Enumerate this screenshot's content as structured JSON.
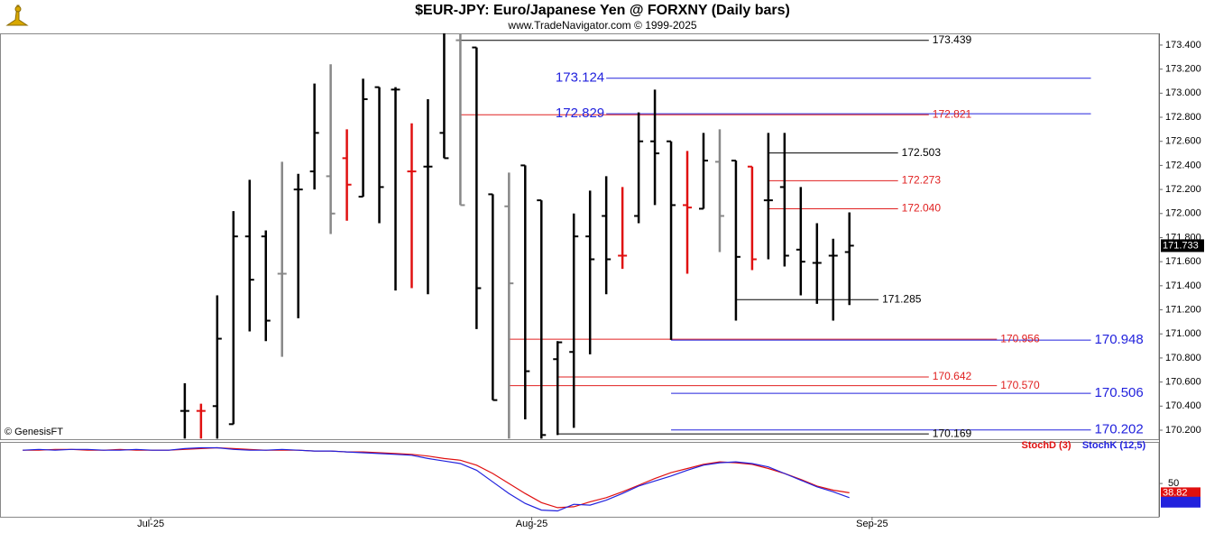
{
  "chart_data": {
    "type": "ohlc",
    "title": "$EUR-JPY:  Euro/Japanese Yen @ FORXNY  (Daily bars)",
    "subtitle": "www.TradeNavigator.com © 1999-2025",
    "credit": "© GenesisFT",
    "xlim": [
      -11.4,
      60.1
    ],
    "xticks": [
      {
        "value": -2.1,
        "label": "Jul-25"
      },
      {
        "value": 21.4,
        "label": "Aug-25"
      },
      {
        "value": 42.4,
        "label": "Sep-25"
      }
    ],
    "ylim": [
      170.125,
      173.497
    ],
    "yticks": [
      {
        "value": 170.2,
        "label": "170.200"
      },
      {
        "value": 170.4,
        "label": "170.400"
      },
      {
        "value": 170.6,
        "label": "170.600"
      },
      {
        "value": 170.8,
        "label": "170.800"
      },
      {
        "value": 171.0,
        "label": "171.000"
      },
      {
        "value": 171.2,
        "label": "171.200"
      },
      {
        "value": 171.4,
        "label": "171.400"
      },
      {
        "value": 171.6,
        "label": "171.600"
      },
      {
        "value": 171.8,
        "label": "171.800"
      },
      {
        "value": 172.0,
        "label": "172.000"
      },
      {
        "value": 172.2,
        "label": "172.200"
      },
      {
        "value": 172.4,
        "label": "172.400"
      },
      {
        "value": 172.6,
        "label": "172.600"
      },
      {
        "value": 172.8,
        "label": "172.800"
      },
      {
        "value": 173.0,
        "label": "173.000"
      },
      {
        "value": 173.2,
        "label": "173.200"
      },
      {
        "value": 173.4,
        "label": "173.400"
      }
    ],
    "open": [
      170.36,
      170.36,
      170.4,
      170.25,
      171.81,
      171.81,
      171.5,
      172.2,
      172.35,
      172.31,
      172.46,
      172.14,
      173.05,
      173.03,
      172.35,
      172.39,
      172.67,
      173.44,
      173.38,
      172.16,
      172.06,
      172.4,
      172.11,
      170.79,
      170.85,
      171.81,
      171.98,
      171.65,
      171.98,
      172.6,
      172.6,
      172.07,
      172.04,
      172.43,
      172.44,
      172.39,
      172.11,
      172.22,
      171.7,
      171.59,
      171.65,
      171.68
    ],
    "high": [
      170.59,
      170.42,
      171.32,
      172.02,
      172.28,
      171.86,
      172.43,
      172.33,
      173.08,
      173.24,
      172.7,
      173.12,
      173.05,
      173.05,
      172.75,
      172.95,
      173.5,
      173.5,
      173.38,
      172.16,
      172.34,
      172.4,
      172.11,
      170.94,
      172.0,
      172.19,
      172.31,
      172.22,
      172.84,
      173.03,
      172.6,
      172.52,
      172.67,
      172.7,
      172.44,
      172.39,
      172.67,
      172.67,
      172.22,
      171.92,
      171.79,
      172.01
    ],
    "low": [
      170.13,
      170.13,
      170.13,
      170.25,
      171.02,
      170.94,
      170.81,
      171.13,
      172.2,
      171.83,
      171.94,
      172.14,
      171.92,
      171.36,
      171.38,
      171.33,
      172.46,
      172.07,
      171.04,
      170.45,
      170.13,
      170.29,
      170.13,
      170.16,
      170.22,
      170.83,
      171.33,
      171.54,
      171.92,
      172.07,
      170.95,
      171.5,
      172.04,
      171.68,
      171.11,
      171.53,
      171.62,
      171.56,
      171.32,
      171.25,
      171.11,
      171.24
    ],
    "close": [
      170.36,
      170.36,
      170.96,
      171.81,
      171.45,
      171.11,
      171.5,
      172.2,
      172.67,
      172.0,
      172.24,
      172.95,
      172.22,
      173.03,
      172.35,
      172.39,
      172.46,
      172.07,
      171.38,
      170.45,
      171.42,
      170.69,
      170.16,
      170.93,
      171.81,
      171.62,
      171.62,
      171.65,
      172.6,
      172.5,
      172.07,
      172.05,
      172.44,
      171.98,
      171.64,
      171.62,
      172.11,
      171.65,
      171.6,
      171.59,
      171.65,
      171.733
    ],
    "colors": [
      "#000000",
      "#e01010",
      "#000000",
      "#000000",
      "#000000",
      "#000000",
      "#888888",
      "#000000",
      "#000000",
      "#888888",
      "#e01010",
      "#000000",
      "#000000",
      "#000000",
      "#e01010",
      "#000000",
      "#000000",
      "#888888",
      "#000000",
      "#000000",
      "#888888",
      "#000000",
      "#000000",
      "#000000",
      "#000000",
      "#000000",
      "#000000",
      "#e01010",
      "#000000",
      "#000000",
      "#000000",
      "#e01010",
      "#000000",
      "#888888",
      "#000000",
      "#e01010",
      "#000000",
      "#000000",
      "#000000",
      "#000000",
      "#000000",
      "#000000"
    ],
    "levels": [
      {
        "value": 173.439,
        "label": "173.439",
        "color": "#000000",
        "from": 17,
        "to": 45.9
      },
      {
        "value": 173.124,
        "label": "173.124",
        "color": "#2222dd",
        "from": 26,
        "to": 55.9,
        "label_position": "left"
      },
      {
        "value": 172.829,
        "label": "172.829",
        "color": "#2222dd",
        "from": 26,
        "to": 55.9,
        "label_position": "left"
      },
      {
        "value": 172.821,
        "label": "172.821",
        "color": "#e02020",
        "from": 17,
        "to": 45.9
      },
      {
        "value": 172.503,
        "label": "172.503",
        "color": "#000000",
        "from": 36,
        "to": 44.0
      },
      {
        "value": 172.273,
        "label": "172.273",
        "color": "#e02020",
        "from": 36,
        "to": 44.0
      },
      {
        "value": 172.04,
        "label": "172.040",
        "color": "#e02020",
        "from": 36,
        "to": 44.0
      },
      {
        "value": 171.285,
        "label": "171.285",
        "color": "#000000",
        "from": 34,
        "to": 42.8
      },
      {
        "value": 170.956,
        "label": "170.956",
        "color": "#e02020",
        "from": 20,
        "to": 50.1
      },
      {
        "value": 170.948,
        "label": "170.948",
        "color": "#2222dd",
        "from": 30,
        "to": 55.9
      },
      {
        "value": 170.642,
        "label": "170.642",
        "color": "#e02020",
        "from": 23,
        "to": 45.9
      },
      {
        "value": 170.57,
        "label": "170.570",
        "color": "#e02020",
        "from": 20,
        "to": 50.1
      },
      {
        "value": 170.506,
        "label": "170.506",
        "color": "#2222dd",
        "from": 30,
        "to": 55.9
      },
      {
        "value": 170.202,
        "label": "170.202",
        "color": "#2222dd",
        "from": 30,
        "to": 55.9
      },
      {
        "value": 170.169,
        "label": "170.169",
        "color": "#000000",
        "from": 23,
        "to": 45.9
      }
    ],
    "stoch": {
      "ylim": [
        10,
        100
      ],
      "yticks": [
        50
      ],
      "x": [
        -10,
        -9,
        -8,
        -7,
        -6,
        -5,
        -4,
        -3,
        -2,
        -1,
        0,
        1,
        2,
        3,
        4,
        5,
        6,
        7,
        8,
        9,
        10,
        11,
        12,
        13,
        14,
        15,
        16,
        17,
        18,
        19,
        20,
        21,
        22,
        23,
        24,
        25,
        26,
        27,
        28,
        29,
        30,
        31,
        32,
        33,
        34,
        35,
        36,
        37,
        38,
        39,
        40,
        41
      ],
      "series": [
        {
          "name": "StochD (3)",
          "color": "#e01010",
          "values": [
            90,
            90,
            91,
            91,
            90,
            90,
            91,
            90,
            90,
            90,
            91,
            92,
            93,
            92,
            91,
            90,
            90,
            90,
            89,
            89,
            88,
            88,
            87,
            86,
            85,
            83,
            80,
            78,
            72,
            62,
            50,
            38,
            27,
            21,
            22,
            28,
            33,
            40,
            48,
            56,
            63,
            68,
            73,
            76,
            75,
            73,
            68,
            62,
            55,
            47,
            42,
            38.82
          ]
        },
        {
          "name": "StochK (12,5)",
          "color": "#2222dd",
          "values": [
            90,
            91,
            90,
            91,
            91,
            90,
            90,
            91,
            90,
            90,
            92,
            93,
            93,
            91,
            90,
            90,
            91,
            90,
            89,
            89,
            88,
            87,
            86,
            85,
            84,
            80,
            77,
            74,
            66,
            52,
            38,
            26,
            18,
            17,
            25,
            24,
            30,
            38,
            47,
            53,
            59,
            66,
            72,
            75,
            76,
            74,
            70,
            62,
            54,
            46,
            40,
            33
          ]
        }
      ]
    }
  }
}
